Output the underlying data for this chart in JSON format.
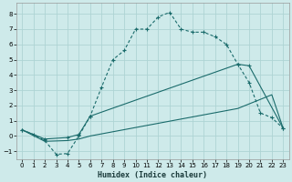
{
  "xlabel": "Humidex (Indice chaleur)",
  "xlim": [
    -0.5,
    23.5
  ],
  "ylim": [
    -1.5,
    8.7
  ],
  "xticks": [
    0,
    1,
    2,
    3,
    4,
    5,
    6,
    7,
    8,
    9,
    10,
    11,
    12,
    13,
    14,
    15,
    16,
    17,
    18,
    19,
    20,
    21,
    22,
    23
  ],
  "yticks": [
    -1,
    0,
    1,
    2,
    3,
    4,
    5,
    6,
    7,
    8
  ],
  "bg": "#ceeaea",
  "grid_color": "#aed4d4",
  "lc": "#1a6b6b",
  "curve1_x": [
    0,
    1,
    2,
    3,
    4,
    5,
    6,
    7,
    8,
    9,
    10,
    11,
    12,
    13,
    14,
    15,
    16,
    17,
    18,
    19,
    20,
    21,
    22,
    23
  ],
  "curve1_y": [
    0.4,
    0.1,
    -0.3,
    -1.2,
    -1.15,
    0.0,
    1.3,
    3.2,
    5.0,
    5.6,
    7.0,
    7.0,
    7.8,
    8.1,
    7.0,
    6.8,
    6.8,
    6.5,
    6.0,
    4.7,
    3.5,
    1.5,
    1.2,
    0.5
  ],
  "curve2_x": [
    0,
    2,
    4,
    5,
    6,
    19,
    20,
    23
  ],
  "curve2_y": [
    0.4,
    -0.2,
    -0.1,
    0.1,
    1.3,
    4.7,
    4.6,
    0.5
  ],
  "curve3_x": [
    0,
    2,
    4,
    5,
    6,
    19,
    22,
    23
  ],
  "curve3_y": [
    0.4,
    -0.35,
    -0.3,
    -0.2,
    0.0,
    1.8,
    2.7,
    0.5
  ]
}
